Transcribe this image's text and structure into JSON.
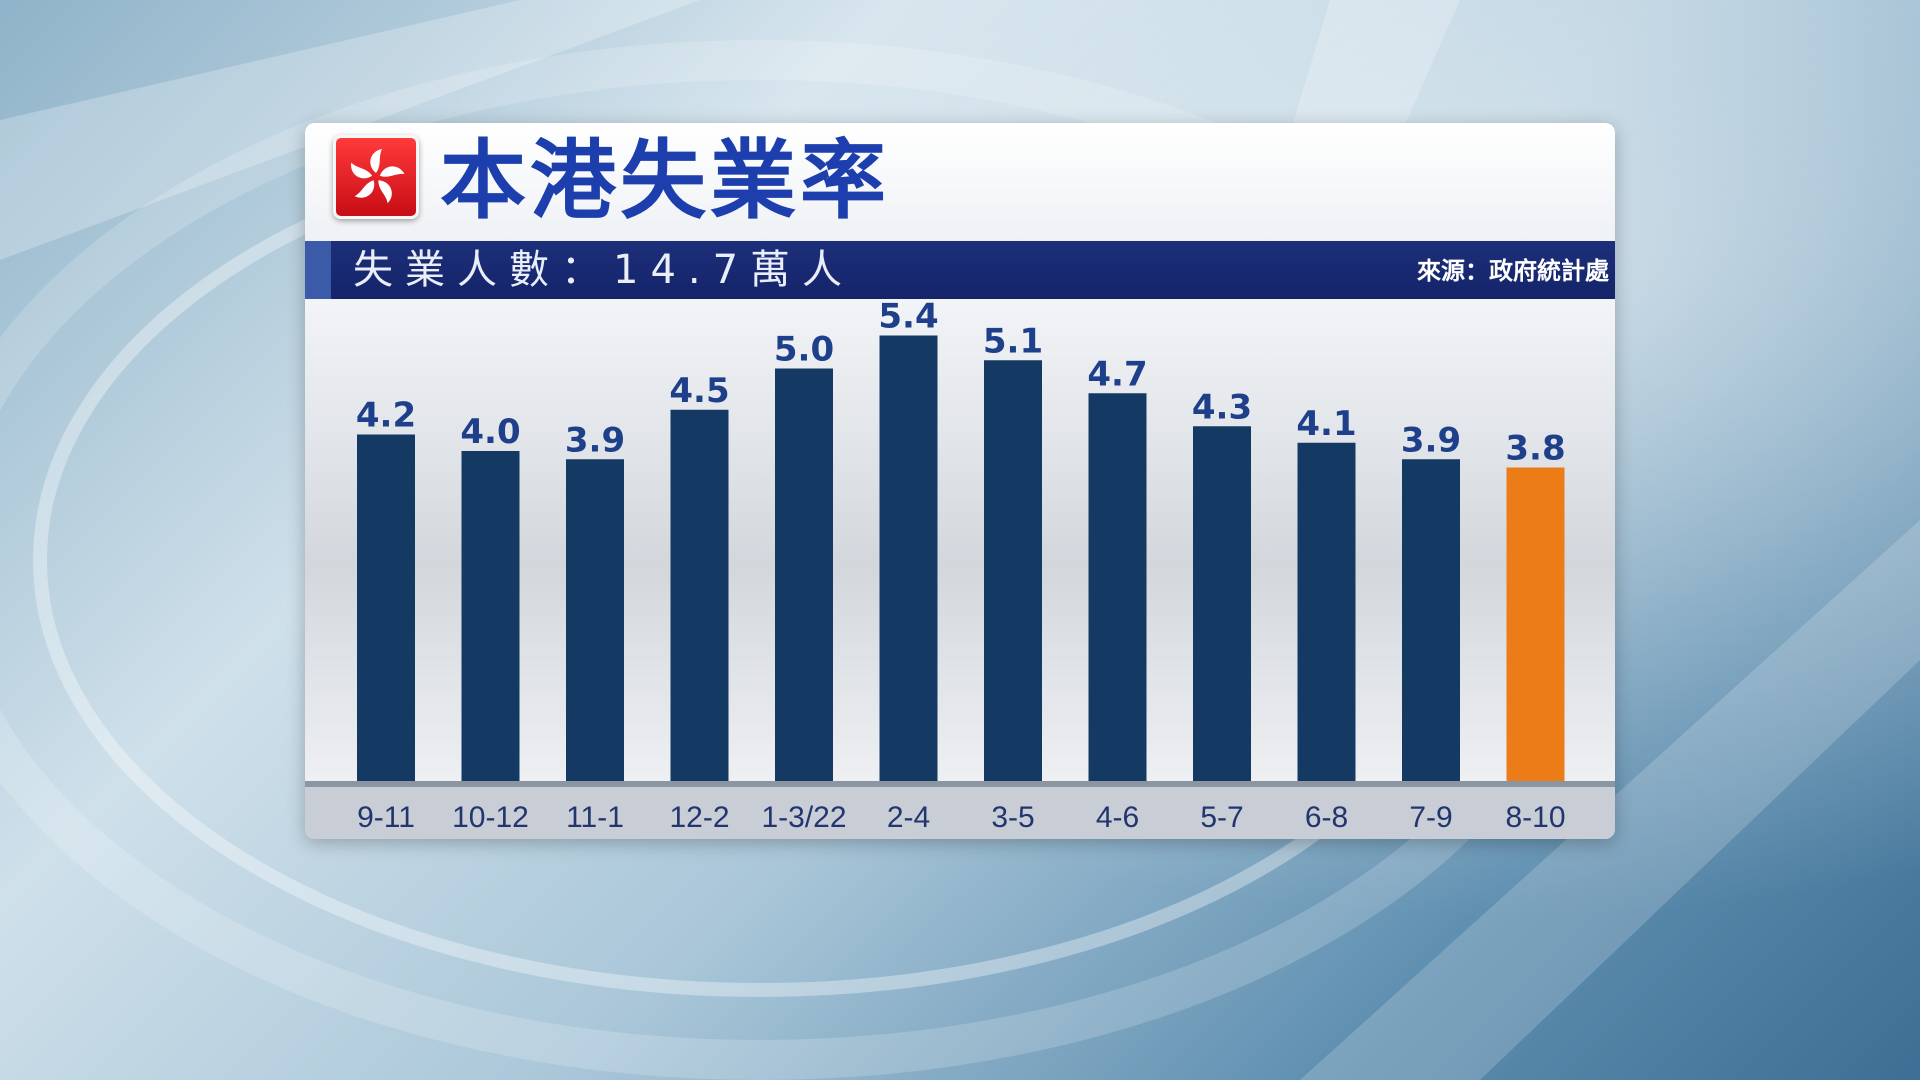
{
  "header": {
    "title": "本港失業率",
    "subtitle": "失業人數：14.7萬人",
    "source": "來源：政府統計處",
    "unit": "%"
  },
  "colors": {
    "bar": "#143a63",
    "highlight_bar": "#ec7c17",
    "label": "#1e3f8a",
    "title": "#1d3fae"
  },
  "chart_data": {
    "type": "bar",
    "title": "本港失業率",
    "ylabel": "%",
    "categories": [
      "9-11",
      "10-12",
      "11-1",
      "12-2",
      "1-3/22",
      "2-4",
      "3-5",
      "4-6",
      "5-7",
      "6-8",
      "7-9",
      "8-10"
    ],
    "values": [
      4.2,
      4.0,
      3.9,
      4.5,
      5.0,
      5.4,
      5.1,
      4.7,
      4.3,
      4.1,
      3.9,
      3.8
    ],
    "highlight_index": 11,
    "ylim": [
      0,
      5.6
    ],
    "grid": false,
    "legend": "none"
  }
}
